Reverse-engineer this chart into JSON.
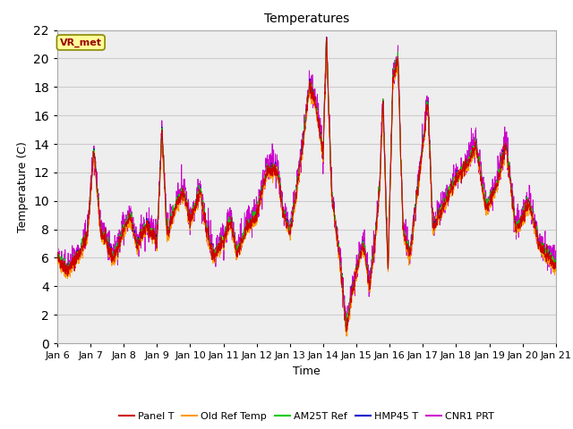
{
  "title": "Temperatures",
  "xlabel": "Time",
  "ylabel": "Temperature (C)",
  "ylim": [
    0,
    22
  ],
  "xtick_labels": [
    "Jan 6",
    "Jan 7",
    "Jan 8",
    "Jan 9",
    "Jan 10",
    "Jan 11",
    "Jan 12",
    "Jan 13",
    "Jan 14",
    "Jan 15",
    "Jan 16",
    "Jan 17",
    "Jan 18",
    "Jan 19",
    "Jan 20",
    "Jan 21"
  ],
  "legend_labels": [
    "Panel T",
    "Old Ref Temp",
    "AM25T Ref",
    "HMP45 T",
    "CNR1 PRT"
  ],
  "line_colors": [
    "#cc0000",
    "#ff9900",
    "#00cc00",
    "#0000cc",
    "#cc00cc"
  ],
  "annotation_text": "VR_met",
  "annotation_bg": "#ffff99",
  "annotation_border": "#888800",
  "annotation_text_color": "#990000",
  "title_fontsize": 10,
  "tick_fontsize": 8,
  "label_fontsize": 9
}
